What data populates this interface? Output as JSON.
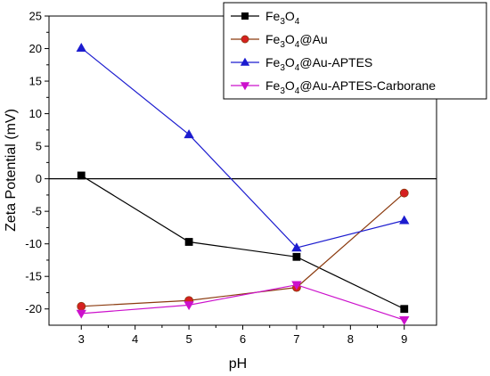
{
  "chart_data": {
    "type": "line",
    "xlabel": "pH",
    "ylabel": "Zeta Potential (mV)",
    "xlim": [
      2.4,
      9.6
    ],
    "ylim": [
      -22.5,
      25
    ],
    "x_ticks": [
      3,
      4,
      5,
      6,
      7,
      8,
      9
    ],
    "y_ticks": [
      -20,
      -15,
      -10,
      -5,
      0,
      5,
      10,
      15,
      20,
      25
    ],
    "zero_line": true,
    "grid": false,
    "legend_position": "top-right",
    "x": [
      3,
      5,
      7,
      9
    ],
    "series": [
      {
        "name": "Fe3O4",
        "legend": {
          "prefix": "Fe",
          "sub1": "3",
          "mid": "O",
          "sub2": "4",
          "suffix": ""
        },
        "values": [
          0.5,
          -9.7,
          -12.0,
          -20.0
        ],
        "color": "#000000",
        "marker": "square"
      },
      {
        "name": "Fe3O4@Au",
        "legend": {
          "prefix": "Fe",
          "sub1": "3",
          "mid": "O",
          "sub2": "4",
          "suffix": "@Au"
        },
        "values": [
          -19.6,
          -18.7,
          -16.7,
          -2.2
        ],
        "color": "#8b3a0e",
        "marker": "circle",
        "marker_color": "#d62020"
      },
      {
        "name": "Fe3O4@Au-APTES",
        "legend": {
          "prefix": "Fe",
          "sub1": "3",
          "mid": "O",
          "sub2": "4",
          "suffix": "@Au-APTES"
        },
        "values": [
          20.1,
          6.8,
          -10.6,
          -6.4
        ],
        "color": "#1c1ccf",
        "marker": "triangle-up"
      },
      {
        "name": "Fe3O4@Au-APTES-Carborane",
        "legend": {
          "prefix": "Fe",
          "sub1": "3",
          "mid": "O",
          "sub2": "4",
          "suffix": "@Au-APTES-Carborane"
        },
        "values": [
          -20.7,
          -19.4,
          -16.3,
          -21.7
        ],
        "color": "#cc11cc",
        "marker": "triangle-down"
      }
    ]
  }
}
